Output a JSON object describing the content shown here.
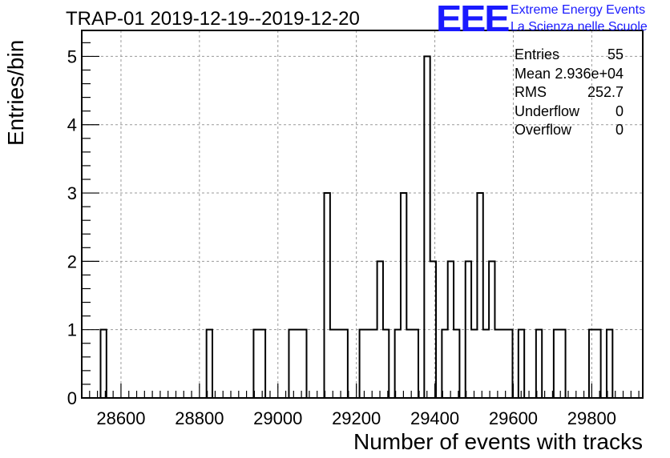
{
  "title": "TRAP-01 2019-12-19--2019-12-20",
  "logo": {
    "text": "EEE",
    "line1": "Extreme Energy Events",
    "line2": "La Scienza nelle Scuole",
    "color": "#1a1aff"
  },
  "stats": [
    {
      "name": "Entries",
      "value": "55"
    },
    {
      "name": "Mean",
      "value": "2.936e+04"
    },
    {
      "name": "RMS",
      "value": "252.7"
    },
    {
      "name": "Underflow",
      "value": "0"
    },
    {
      "name": "Overflow",
      "value": "0"
    }
  ],
  "chart_data": {
    "type": "histogram",
    "title": "TRAP-01 2019-12-19--2019-12-20",
    "xlabel": "Number of events with tracks",
    "ylabel": "Entries/bin",
    "xlim": [
      28500,
      29930
    ],
    "ylim": [
      0,
      5.38
    ],
    "grid": true,
    "bin_width": 15,
    "bin_starts": [
      28548,
      28818,
      28938,
      28953,
      29028,
      29043,
      29058,
      29118,
      29133,
      29148,
      29163,
      29208,
      29223,
      29238,
      29253,
      29268,
      29298,
      29313,
      29328,
      29343,
      29358,
      29373,
      29388,
      29403,
      29418,
      29433,
      29448,
      29478,
      29493,
      29508,
      29523,
      29538,
      29553,
      29568,
      29583,
      29613,
      29658,
      29703,
      29718,
      29793,
      29808,
      29838
    ],
    "counts": [
      1,
      1,
      1,
      1,
      1,
      1,
      1,
      3,
      1,
      1,
      1,
      1,
      1,
      1,
      2,
      1,
      1,
      3,
      1,
      1,
      0,
      5,
      2,
      0,
      1,
      2,
      1,
      2,
      1,
      3,
      1,
      2,
      1,
      1,
      1,
      1,
      1,
      1,
      1,
      1,
      1,
      1
    ],
    "xticks": [
      28600,
      28800,
      29000,
      29200,
      29400,
      29600,
      29800
    ],
    "xtick_labels": [
      "28600",
      "28800",
      "29000",
      "29200",
      "29400",
      "29600",
      "29800"
    ],
    "yticks": [
      0,
      1,
      2,
      3,
      4,
      5
    ],
    "ytick_labels": [
      "0",
      "1",
      "2",
      "3",
      "4",
      "5"
    ],
    "line_color": "#000000",
    "grid_color": "#9a9a9a"
  }
}
